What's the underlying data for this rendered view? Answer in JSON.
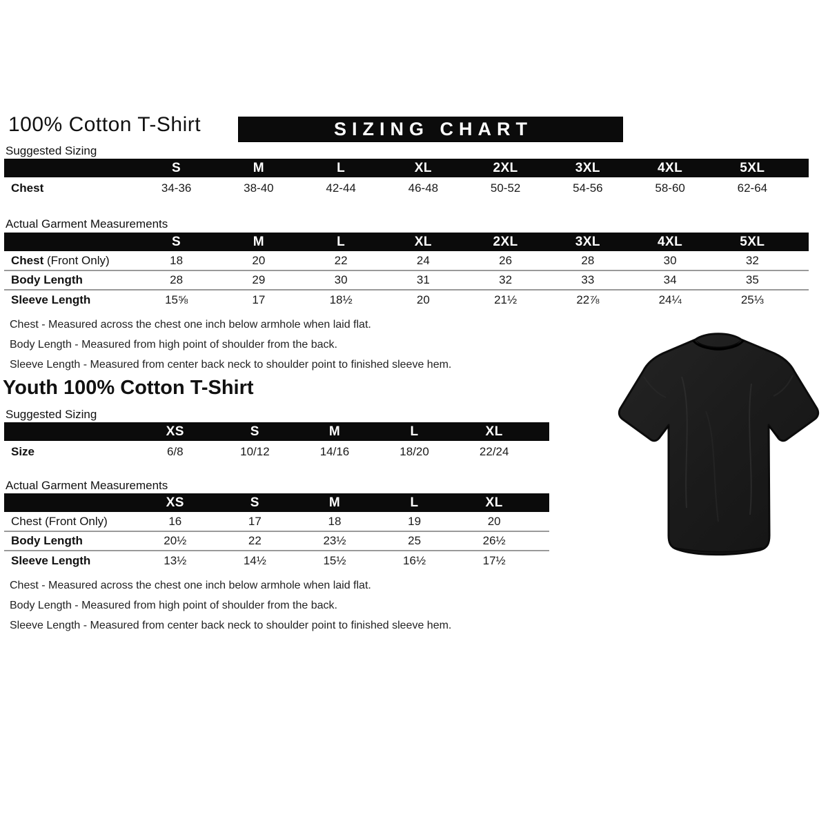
{
  "colors": {
    "bar": "#0b0b0b",
    "banner_text": "#ffffff",
    "separator": "#999999",
    "tshirt": "#1a1a1a"
  },
  "adult_section": {
    "title": "100% Cotton T-Shirt",
    "banner_title": "SIZING CHART",
    "suggested_label": "Suggested Sizing",
    "suggested_table": {
      "columns": [
        "S",
        "M",
        "L",
        "XL",
        "2XL",
        "3XL",
        "4XL",
        "5XL"
      ],
      "rows": [
        {
          "label": "Chest",
          "bold": true,
          "values": [
            "34-36",
            "38-40",
            "42-44",
            "46-48",
            "50-52",
            "54-56",
            "58-60",
            "62-64"
          ]
        }
      ]
    },
    "actual_label": "Actual Garment Measurements",
    "actual_table": {
      "columns": [
        "S",
        "M",
        "L",
        "XL",
        "2XL",
        "3XL",
        "4XL",
        "5XL"
      ],
      "rows": [
        {
          "label": "Chest",
          "suffix": " (Front Only)",
          "bold": true,
          "separator": true,
          "values": [
            "18",
            "20",
            "22",
            "24",
            "26",
            "28",
            "30",
            "32"
          ]
        },
        {
          "label": "Body Length",
          "bold": true,
          "separator": true,
          "values": [
            "28",
            "29",
            "30",
            "31",
            "32",
            "33",
            "34",
            "35"
          ]
        },
        {
          "label": "Sleeve Length",
          "bold": true,
          "values": [
            "15⅝",
            "17",
            "18½",
            "20",
            "21½",
            "22⅞",
            "24¼",
            "25⅓"
          ]
        }
      ]
    },
    "notes": [
      "Chest - Measured across the chest one inch below armhole when laid flat.",
      "Body Length - Measured from high point of shoulder from the back.",
      "Sleeve Length - Measured from center back neck to shoulder point to finished sleeve hem."
    ]
  },
  "youth_section": {
    "title": "Youth 100% Cotton T-Shirt",
    "suggested_label": "Suggested Sizing",
    "suggested_table": {
      "columns": [
        "XS",
        "S",
        "M",
        "L",
        "XL"
      ],
      "rows": [
        {
          "label": "Size",
          "bold": true,
          "values": [
            "6/8",
            "10/12",
            "14/16",
            "18/20",
            "22/24"
          ]
        }
      ]
    },
    "actual_label": "Actual Garment Measurements",
    "actual_table": {
      "columns": [
        "XS",
        "S",
        "M",
        "L",
        "XL"
      ],
      "rows": [
        {
          "label": "Chest (Front Only)",
          "bold": false,
          "separator": true,
          "values": [
            "16",
            "17",
            "18",
            "19",
            "20"
          ]
        },
        {
          "label": "Body Length",
          "bold": true,
          "separator": true,
          "values": [
            "20½",
            "22",
            "23½",
            "25",
            "26½"
          ]
        },
        {
          "label": "Sleeve Length",
          "bold": true,
          "values": [
            "13½",
            "14½",
            "15½",
            "16½",
            "17½"
          ]
        }
      ]
    },
    "notes": [
      "Chest - Measured across the chest one inch below armhole when laid flat.",
      "Body Length - Measured from high point of shoulder from the back.",
      "Sleeve Length - Measured from center back neck to shoulder point to finished sleeve hem."
    ]
  },
  "tshirt_image": {
    "description": "black short-sleeve crew-neck t-shirt, front view"
  }
}
